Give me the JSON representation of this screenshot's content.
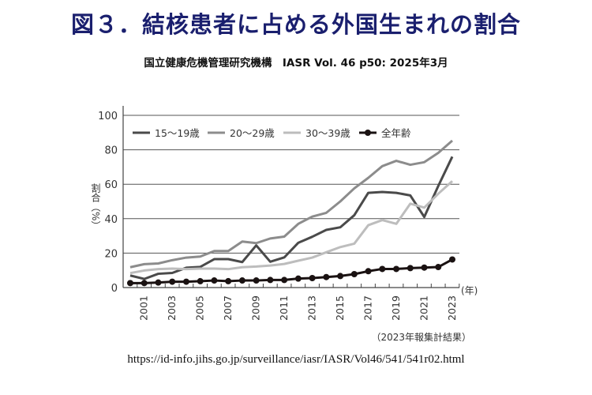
{
  "title": "図３．結核患者に占める外国生まれの割合",
  "subtitle": "国立健康危機管理研究機構　IASR Vol. 46 p50: 2025年3月",
  "url": "https://id-info.jihs.go.jp/surveillance/iasr/IASR/Vol46/541/541r02.html",
  "chart_data": {
    "type": "line",
    "title": "",
    "xlabel": "(年)",
    "ylabel": "割合（%）",
    "note": "（2023年報集計結果）",
    "ylim": [
      0,
      100
    ],
    "yticks": [
      0,
      20,
      40,
      60,
      80,
      100
    ],
    "xticks": [
      2001,
      2003,
      2005,
      2007,
      2009,
      2011,
      2013,
      2015,
      2017,
      2019,
      2021,
      2023
    ],
    "grid": true,
    "legend_position": "top-left",
    "x": [
      2000,
      2001,
      2002,
      2003,
      2004,
      2005,
      2006,
      2007,
      2008,
      2009,
      2010,
      2011,
      2012,
      2013,
      2014,
      2015,
      2016,
      2017,
      2018,
      2019,
      2020,
      2021,
      2022,
      2023
    ],
    "series": [
      {
        "name": "15～19歳",
        "color": "#4a4a4a",
        "markers": false,
        "values": [
          7,
          5,
          8,
          8.5,
          11.5,
          12,
          16.5,
          16.5,
          14.8,
          24.5,
          15,
          17.5,
          26,
          29.5,
          33.5,
          35,
          42,
          55,
          55.5,
          55,
          53.5,
          41,
          59,
          76
        ]
      },
      {
        "name": "20～29歳",
        "color": "#8c8c8c",
        "markers": false,
        "values": [
          11.8,
          13.6,
          14,
          15.9,
          17.4,
          18,
          21.2,
          21.2,
          26.7,
          25.8,
          28.5,
          29.6,
          37,
          41.2,
          43.4,
          50,
          57.6,
          63.7,
          70.5,
          73.6,
          71.3,
          72.8,
          78.2,
          85.3
        ]
      },
      {
        "name": "30～39歳",
        "color": "#bdbdbd",
        "markers": false,
        "values": [
          8.4,
          9.9,
          10.7,
          11,
          10.7,
          11,
          11,
          10.7,
          11.8,
          12.2,
          12.8,
          13.7,
          15.6,
          17.4,
          20.5,
          23.5,
          25.5,
          36.2,
          39.2,
          37,
          48.7,
          46.4,
          54.5,
          61.8
        ]
      },
      {
        "name": "全年齢",
        "color": "#1a1212",
        "markers": true,
        "values": [
          2.6,
          2.6,
          2.9,
          3.4,
          3.4,
          3.7,
          4.1,
          3.7,
          4.1,
          4.1,
          4.4,
          4.4,
          5.2,
          5.5,
          6.1,
          6.7,
          7.8,
          9.5,
          10.8,
          10.8,
          11.3,
          11.6,
          11.9,
          16.3
        ]
      }
    ]
  }
}
